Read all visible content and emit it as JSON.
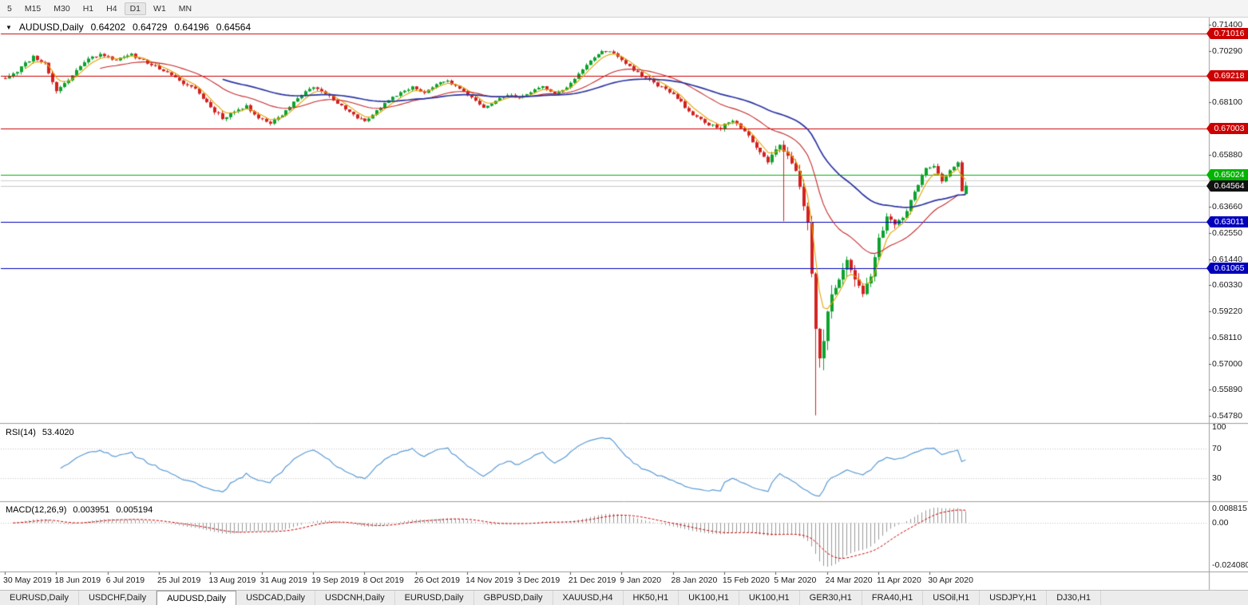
{
  "toolbar": {
    "timeframes": [
      {
        "label": "5",
        "active": false
      },
      {
        "label": "M15",
        "active": false
      },
      {
        "label": "M30",
        "active": false
      },
      {
        "label": "H1",
        "active": false
      },
      {
        "label": "H4",
        "active": false
      },
      {
        "label": "D1",
        "active": true
      },
      {
        "label": "W1",
        "active": false
      },
      {
        "label": "MN",
        "active": false
      }
    ]
  },
  "chart": {
    "dropdown_icon": "▼",
    "symbol_title": "AUDUSD,Daily",
    "open": "0.64202",
    "high": "0.64729",
    "low": "0.64196",
    "close": "0.64564"
  },
  "rsi_panel": {
    "title": "RSI(14)",
    "value": "53.4020"
  },
  "macd_panel": {
    "title": "MACD(12,26,9)",
    "macd_value": "0.003951",
    "signal_value": "0.005194"
  },
  "tabbar": {
    "tabs": [
      {
        "label": "EURUSD,Daily",
        "active": false
      },
      {
        "label": "USDCHF,Daily",
        "active": false
      },
      {
        "label": "AUDUSD,Daily",
        "active": true
      },
      {
        "label": "USDCAD,Daily",
        "active": false
      },
      {
        "label": "USDCNH,Daily",
        "active": false
      },
      {
        "label": "EURUSD,Daily",
        "active": false
      },
      {
        "label": "GBPUSD,Daily",
        "active": false
      },
      {
        "label": "XAUUSD,H4",
        "active": false
      },
      {
        "label": "HK50,H1",
        "active": false
      },
      {
        "label": "UK100,H1",
        "active": false
      },
      {
        "label": "UK100,H1",
        "active": false
      },
      {
        "label": "GER30,H1",
        "active": false
      },
      {
        "label": "FRA40,H1",
        "active": false
      },
      {
        "label": "USOil,H1",
        "active": false
      },
      {
        "label": "USDJPY,H1",
        "active": false
      },
      {
        "label": "DJ30,H1",
        "active": false
      }
    ]
  },
  "chart_data": {
    "type": "candlestick",
    "title": "AUDUSD,Daily",
    "current_ohlc": {
      "open": 0.64202,
      "high": 0.64729,
      "low": 0.64196,
      "close": 0.64564
    },
    "candle_count": 244,
    "seed": 11,
    "close_anchors": [
      [
        0,
        0.6915,
        0.0016
      ],
      [
        3,
        0.6945,
        0.0016
      ],
      [
        7,
        0.7005,
        0.0015
      ],
      [
        10,
        0.6975,
        0.0014
      ],
      [
        13,
        0.686,
        0.0016
      ],
      [
        16,
        0.6905,
        0.0015
      ],
      [
        20,
        0.6985,
        0.0014
      ],
      [
        24,
        0.7018,
        0.0012
      ],
      [
        28,
        0.699,
        0.0013
      ],
      [
        32,
        0.7012,
        0.0012
      ],
      [
        36,
        0.698,
        0.0013
      ],
      [
        40,
        0.6945,
        0.0013
      ],
      [
        44,
        0.69,
        0.0014
      ],
      [
        48,
        0.6868,
        0.0014
      ],
      [
        52,
        0.679,
        0.0018
      ],
      [
        55,
        0.6745,
        0.0018
      ],
      [
        58,
        0.6772,
        0.0014
      ],
      [
        61,
        0.6792,
        0.0013
      ],
      [
        64,
        0.6748,
        0.0014
      ],
      [
        67,
        0.6722,
        0.0014
      ],
      [
        70,
        0.6758,
        0.0013
      ],
      [
        73,
        0.6812,
        0.0013
      ],
      [
        76,
        0.6862,
        0.0012
      ],
      [
        79,
        0.6872,
        0.0012
      ],
      [
        82,
        0.6835,
        0.0013
      ],
      [
        85,
        0.6792,
        0.0013
      ],
      [
        88,
        0.6755,
        0.0013
      ],
      [
        91,
        0.6732,
        0.0013
      ],
      [
        94,
        0.6772,
        0.0013
      ],
      [
        97,
        0.6818,
        0.0012
      ],
      [
        100,
        0.6852,
        0.0012
      ],
      [
        103,
        0.6876,
        0.0011
      ],
      [
        106,
        0.685,
        0.0011
      ],
      [
        109,
        0.6886,
        0.0011
      ],
      [
        112,
        0.6902,
        0.0011
      ],
      [
        115,
        0.6866,
        0.0011
      ],
      [
        118,
        0.6832,
        0.0011
      ],
      [
        121,
        0.6792,
        0.0011
      ],
      [
        124,
        0.6816,
        0.0011
      ],
      [
        127,
        0.6842,
        0.0011
      ],
      [
        130,
        0.6826,
        0.0011
      ],
      [
        133,
        0.6856,
        0.0011
      ],
      [
        136,
        0.688,
        0.001
      ],
      [
        139,
        0.6846,
        0.001
      ],
      [
        142,
        0.6872,
        0.001
      ],
      [
        145,
        0.6932,
        0.001
      ],
      [
        148,
        0.6986,
        0.001
      ],
      [
        151,
        0.7026,
        0.0009
      ],
      [
        153,
        0.703,
        0.0009
      ],
      [
        157,
        0.6976,
        0.0011
      ],
      [
        161,
        0.6922,
        0.0011
      ],
      [
        165,
        0.6882,
        0.0011
      ],
      [
        169,
        0.6846,
        0.0011
      ],
      [
        173,
        0.6772,
        0.0013
      ],
      [
        177,
        0.6722,
        0.0013
      ],
      [
        181,
        0.6702,
        0.0014
      ],
      [
        184,
        0.6736,
        0.0014
      ],
      [
        187,
        0.6692,
        0.0015
      ],
      [
        190,
        0.6622,
        0.0017
      ],
      [
        193,
        0.6562,
        0.002
      ],
      [
        196,
        0.663,
        0.0025
      ],
      [
        198,
        0.6588,
        0.003
      ],
      [
        200,
        0.6502,
        0.004
      ],
      [
        202,
        0.6382,
        0.005
      ],
      [
        203,
        0.6292,
        0.0058
      ],
      [
        204,
        0.606,
        0.0075
      ],
      [
        205,
        0.5872,
        0.0088
      ],
      [
        206,
        0.5762,
        0.0092
      ],
      [
        207,
        0.5832,
        0.0085
      ],
      [
        209,
        0.599,
        0.0065
      ],
      [
        211,
        0.6052,
        0.0055
      ],
      [
        213,
        0.6122,
        0.005
      ],
      [
        215,
        0.6062,
        0.0045
      ],
      [
        217,
        0.5986,
        0.004
      ],
      [
        219,
        0.6082,
        0.0035
      ],
      [
        221,
        0.6222,
        0.0032
      ],
      [
        223,
        0.6332,
        0.0028
      ],
      [
        225,
        0.6282,
        0.0025
      ],
      [
        227,
        0.6322,
        0.0022
      ],
      [
        229,
        0.6392,
        0.002
      ],
      [
        231,
        0.6452,
        0.0018
      ],
      [
        233,
        0.6532,
        0.0017
      ],
      [
        235,
        0.6542,
        0.0016
      ],
      [
        237,
        0.6472,
        0.0016
      ],
      [
        239,
        0.6522,
        0.0015
      ],
      [
        241,
        0.6552,
        0.0014
      ],
      [
        242,
        0.6432,
        0.0013
      ],
      [
        243,
        0.64564,
        0.0012
      ]
    ],
    "special_wicks": [
      {
        "i": 197,
        "low": 0.6305
      },
      {
        "i": 205,
        "low": 0.548
      }
    ],
    "y_axis": {
      "min": 0.54543,
      "max": 0.71637,
      "ticks": [
        {
          "label": "0.71400",
          "value": 0.714
        },
        {
          "label": "0.70290",
          "value": 0.7029
        },
        {
          "label": "0.68100",
          "value": 0.681
        },
        {
          "label": "0.65880",
          "value": 0.6588
        },
        {
          "label": "0.63660",
          "value": 0.6366
        },
        {
          "label": "0.62550",
          "value": 0.6255
        },
        {
          "label": "0.61440",
          "value": 0.6144
        },
        {
          "label": "0.60330",
          "value": 0.6033
        },
        {
          "label": "0.59220",
          "value": 0.5922
        },
        {
          "label": "0.58110",
          "value": 0.5811
        },
        {
          "label": "0.57000",
          "value": 0.57
        },
        {
          "label": "0.55890",
          "value": 0.5589
        },
        {
          "label": "0.54780",
          "value": 0.5478
        }
      ]
    },
    "x_axis": {
      "candles_per_label": 13,
      "labels": [
        "30 May 2019",
        "18 Jun 2019",
        "6 Jul 2019",
        "25 Jul 2019",
        "13 Aug 2019",
        "31 Aug 2019",
        "19 Sep 2019",
        "8 Oct 2019",
        "26 Oct 2019",
        "14 Nov 2019",
        "3 Dec 2019",
        "21 Dec 2019",
        "9 Jan 2020",
        "28 Jan 2020",
        "15 Feb 2020",
        "5 Mar 2020",
        "24 Mar 2020",
        "11 Apr 2020",
        "30 Apr 2020"
      ]
    },
    "horizontal_lines": [
      {
        "price": 0.71016,
        "label": "0.71016",
        "color": "#cc0000"
      },
      {
        "price": 0.69218,
        "label": "0.69218",
        "color": "#cc0000"
      },
      {
        "price": 0.67003,
        "label": "0.67003",
        "color": "#cc0000"
      },
      {
        "price": 0.65024,
        "label": "0.65024",
        "color": "#00b400"
      },
      {
        "price": 0.63011,
        "label": "0.63011",
        "color": "#0000bb"
      },
      {
        "price": 0.61065,
        "label": "0.61065",
        "color": "#0000bb"
      }
    ],
    "grid_line_price": 0.6477,
    "current_price": {
      "price": 0.64564,
      "label": "0.64564",
      "badge_color": "#111111",
      "line_color": "#c8c8c8"
    },
    "moving_averages": [
      {
        "period": 5,
        "color": "#e2a400",
        "width": 1.1
      },
      {
        "period": 24,
        "color": "#c62828",
        "width": 1.1
      },
      {
        "period": 55,
        "color": "#2b35a3",
        "width": 1.7
      }
    ],
    "rsi": {
      "period": 14,
      "color": "#5b9bd5",
      "levels": [
        {
          "label": "100",
          "value": 100
        },
        {
          "label": "70",
          "value": 70
        },
        {
          "label": "30",
          "value": 30
        }
      ]
    },
    "macd": {
      "fast": 12,
      "slow": 26,
      "signal": 9,
      "bar_color": "#999999",
      "signal_color": "#cc0000",
      "scale_labels": {
        "max": "0.008815",
        "zero": "0.00",
        "min": "-0.024080"
      }
    },
    "candle_colors": {
      "up": "#0da32e",
      "down": "#d32222"
    }
  }
}
